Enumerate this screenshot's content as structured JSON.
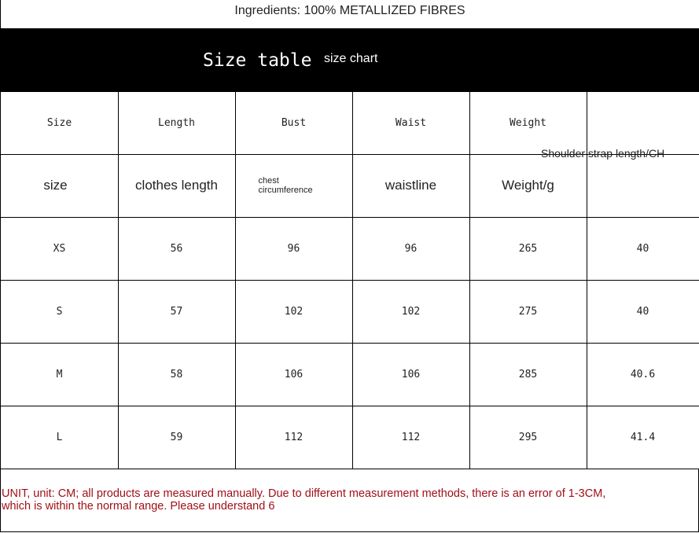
{
  "ingredients": "Ingredients: 100% METALLIZED FIBRES",
  "banner": {
    "title": "Size table",
    "subtitle": "size chart"
  },
  "headers": [
    "Size",
    "Length",
    "Bust",
    "Waist",
    "Weight"
  ],
  "headers_en": [
    "size",
    "clothes length",
    "chest circumference",
    "waistline",
    "Weight/g"
  ],
  "shoulder_header": "Shoulder strap length/CH",
  "rows": [
    [
      "XS",
      "56",
      "96",
      "96",
      "265",
      "40"
    ],
    [
      "S",
      "57",
      "102",
      "102",
      "275",
      "40"
    ],
    [
      "M",
      "58",
      "106",
      "106",
      "285",
      "40.6"
    ],
    [
      "L",
      "59",
      "112",
      "112",
      "295",
      "41.4"
    ]
  ],
  "note": "UNIT, unit: CM; all products are measured manually. Due to different measurement methods, there is an error of 1-3CM, which is within the normal range. Please understand 6",
  "colors": {
    "banner": "#000000",
    "note": "#a01018"
  }
}
